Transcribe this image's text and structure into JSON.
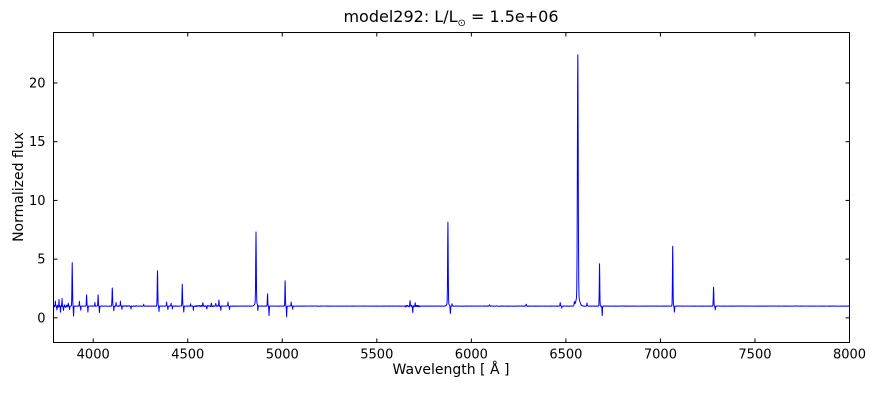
{
  "title": {
    "prefix": "model292: L/L",
    "sun_symbol": "⊙",
    "suffix": " = 1.5e+06",
    "full": "model292: L/L⊙ = 1.5e+06"
  },
  "chart_data": {
    "type": "line",
    "title": "model292: L/L⊙ = 1.5e+06",
    "xlabel": "Wavelength [ Å ]",
    "ylabel": "Normalized flux",
    "xlim": [
      3790,
      8000
    ],
    "ylim": [
      -2.1,
      24.3
    ],
    "xticks": [
      4000,
      4500,
      5000,
      5500,
      6000,
      6500,
      7000,
      7500,
      8000
    ],
    "yticks": [
      0,
      5,
      10,
      15,
      20
    ],
    "grid": false,
    "legend": "none",
    "line_color": "#0000ff",
    "axis_color": "#000000",
    "background": "#ffffff",
    "continuum_level": 1.0,
    "sample_step_angstrom": 1.5,
    "major_peaks": [
      {
        "wavelength": 3889,
        "peak_flux": 4.7
      },
      {
        "wavelength": 3965,
        "peak_flux": 1.95
      },
      {
        "wavelength": 4026,
        "peak_flux": 1.95
      },
      {
        "wavelength": 4101,
        "peak_flux": 2.55
      },
      {
        "wavelength": 4340,
        "peak_flux": 4.0
      },
      {
        "wavelength": 4471,
        "peak_flux": 2.85
      },
      {
        "wavelength": 4861,
        "peak_flux": 7.3
      },
      {
        "wavelength": 4922,
        "peak_flux": 2.05
      },
      {
        "wavelength": 5015,
        "peak_flux": 3.15
      },
      {
        "wavelength": 5876,
        "peak_flux": 8.1
      },
      {
        "wavelength": 6563,
        "peak_flux": 22.4
      },
      {
        "wavelength": 6678,
        "peak_flux": 4.6
      },
      {
        "wavelength": 7065,
        "peak_flux": 6.1
      },
      {
        "wavelength": 7281,
        "peak_flux": 2.6
      }
    ],
    "features": [
      [
        3800,
        0.35,
        1.2
      ],
      [
        3808,
        -0.35,
        1.2
      ],
      [
        3819,
        0.5,
        1.3
      ],
      [
        3827,
        -0.5,
        1.2
      ],
      [
        3835,
        0.6,
        1.5
      ],
      [
        3843,
        -0.4,
        1.2
      ],
      [
        3868,
        0.25,
        1.3
      ],
      [
        3875,
        -0.3,
        1.2
      ],
      [
        3889,
        3.7,
        2.0
      ],
      [
        3896,
        -0.85,
        1.5
      ],
      [
        3927,
        0.4,
        1.4
      ],
      [
        3934,
        -0.35,
        1.3
      ],
      [
        3965,
        0.95,
        1.7
      ],
      [
        3972,
        -0.5,
        1.4
      ],
      [
        4009,
        0.3,
        1.3
      ],
      [
        4026,
        0.95,
        1.7
      ],
      [
        4033,
        -0.55,
        1.4
      ],
      [
        4101,
        1.55,
        2.0
      ],
      [
        4109,
        -0.4,
        1.4
      ],
      [
        4121,
        0.3,
        1.3
      ],
      [
        4144,
        0.4,
        1.4
      ],
      [
        4152,
        -0.3,
        1.3
      ],
      [
        4200,
        -0.25,
        1.3
      ],
      [
        4267,
        0.15,
        1.3
      ],
      [
        4340,
        3.0,
        2.0
      ],
      [
        4348,
        -0.45,
        1.4
      ],
      [
        4388,
        0.35,
        1.4
      ],
      [
        4395,
        -0.3,
        1.3
      ],
      [
        4412,
        0.25,
        1.3
      ],
      [
        4419,
        -0.25,
        1.2
      ],
      [
        4471,
        1.85,
        1.9
      ],
      [
        4479,
        -0.5,
        1.4
      ],
      [
        4515,
        0.2,
        1.4
      ],
      [
        4530,
        -0.35,
        1.3
      ],
      [
        4580,
        0.25,
        1.8
      ],
      [
        4601,
        -0.25,
        1.6
      ],
      [
        4625,
        0.3,
        1.8
      ],
      [
        4648,
        0.25,
        1.6
      ],
      [
        4665,
        0.5,
        1.6
      ],
      [
        4675,
        -0.35,
        1.4
      ],
      [
        4713,
        0.35,
        1.4
      ],
      [
        4721,
        -0.3,
        1.3
      ],
      [
        4861,
        6.0,
        2.2
      ],
      [
        4861,
        0.3,
        9.0
      ],
      [
        4871,
        -0.45,
        1.5
      ],
      [
        4922,
        1.05,
        1.7
      ],
      [
        4930,
        -0.8,
        1.5
      ],
      [
        5015,
        2.15,
        1.7
      ],
      [
        5023,
        -0.9,
        1.5
      ],
      [
        5047,
        0.35,
        1.4
      ],
      [
        5055,
        -0.25,
        1.3
      ],
      [
        5676,
        0.45,
        1.8
      ],
      [
        5690,
        -0.5,
        1.6
      ],
      [
        5703,
        0.3,
        1.5
      ],
      [
        5876,
        6.9,
        2.1
      ],
      [
        5876,
        0.25,
        8.0
      ],
      [
        5889,
        -0.65,
        1.6
      ],
      [
        5898,
        0.2,
        1.4
      ],
      [
        6096,
        0.12,
        2.2
      ],
      [
        6290,
        0.15,
        2.2
      ],
      [
        6470,
        0.3,
        1.6
      ],
      [
        6478,
        -0.18,
        1.3
      ],
      [
        6545,
        0.3,
        2.0
      ],
      [
        6563,
        20.5,
        3.0
      ],
      [
        6563,
        0.9,
        12.0
      ],
      [
        6612,
        0.25,
        1.8
      ],
      [
        6678,
        3.6,
        1.8
      ],
      [
        6692,
        -0.8,
        1.6
      ],
      [
        7065,
        5.1,
        1.9
      ],
      [
        7074,
        -0.5,
        1.5
      ],
      [
        7281,
        1.6,
        1.9
      ],
      [
        7290,
        -0.3,
        1.4
      ]
    ],
    "noise": {
      "seed": 42,
      "base_amplitude": 0.012,
      "regions": [
        {
          "from": 3790,
          "to": 3870,
          "amplitude": 0.1
        },
        {
          "from": 4130,
          "to": 4230,
          "amplitude": 0.03
        },
        {
          "from": 4540,
          "to": 4670,
          "amplitude": 0.05
        },
        {
          "from": 5650,
          "to": 5725,
          "amplitude": 0.07
        },
        {
          "from": 6050,
          "to": 6350,
          "amplitude": 0.015
        }
      ]
    }
  }
}
